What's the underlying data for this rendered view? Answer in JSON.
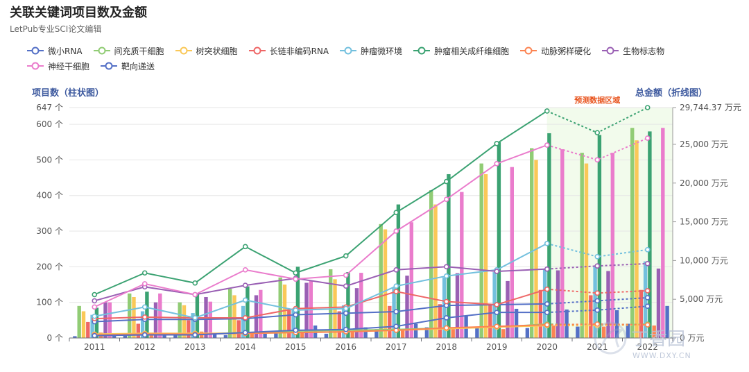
{
  "title": "关联关键词项目数及金额",
  "subtitle": "LetPub专业SCI论文编辑",
  "watermark": {
    "brand": "丁香园",
    "url": "WWW.DXY.CN"
  },
  "chart_data": {
    "type": "bar",
    "categories": [
      "2011",
      "2012",
      "2013",
      "2014",
      "2015",
      "2016",
      "2017",
      "2018",
      "2019",
      "2020",
      "2021",
      "2022"
    ],
    "left_axis": {
      "label": "项目数（柱状图）",
      "ticks": [
        "0 个",
        "100 个",
        "200 个",
        "300 个",
        "400 个",
        "500 个",
        "600 个",
        "647 个"
      ],
      "min": 0,
      "max": 647
    },
    "right_axis": {
      "label": "总金额（折线图）",
      "ticks": [
        "0 万元",
        "5,000 万元",
        "10,000 万元",
        "15,000 万元",
        "20,000 万元",
        "25,000 万元",
        "29,744.37 万元"
      ],
      "min": 0,
      "max": 29744.37
    },
    "forecast": {
      "label": "预测数据区域",
      "from": "2020",
      "to": "2022"
    },
    "series": [
      {
        "name": "微小RNA",
        "color": "#5470c6",
        "bars": [
          5,
          10,
          12,
          8,
          15,
          12,
          25,
          30,
          28,
          28,
          32,
          40
        ],
        "amount": [
          2100,
          2400,
          2400,
          2500,
          3000,
          3200,
          3400,
          4200,
          4300,
          4400,
          4800,
          5200
        ]
      },
      {
        "name": "间充质干细胞",
        "color": "#91cc75",
        "bars": [
          90,
          125,
          100,
          138,
          170,
          193,
          320,
          415,
          490,
          533,
          520,
          590
        ],
        "amount": [
          400,
          500,
          500,
          700,
          900,
          1000,
          1100,
          1300,
          1400,
          1800,
          1700,
          1800
        ]
      },
      {
        "name": "树突状细胞",
        "color": "#fac858",
        "bars": [
          75,
          115,
          92,
          120,
          150,
          165,
          305,
          375,
          460,
          500,
          490,
          555
        ],
        "amount": [
          500,
          600,
          600,
          600,
          700,
          800,
          1000,
          1200,
          1400,
          1600,
          1600,
          1700
        ]
      },
      {
        "name": "长链非编码RNA",
        "color": "#ee6666",
        "bars": [
          45,
          40,
          50,
          50,
          80,
          75,
          90,
          95,
          95,
          135,
          120,
          135
        ],
        "amount": [
          2500,
          2700,
          2600,
          2600,
          3800,
          4000,
          6000,
          4700,
          4300,
          6300,
          5800,
          6100
        ]
      },
      {
        "name": "肿瘤微环境",
        "color": "#73c0de",
        "bars": [
          65,
          75,
          70,
          90,
          80,
          92,
          140,
          170,
          185,
          195,
          200,
          215
        ],
        "amount": [
          2800,
          4000,
          2600,
          4900,
          3600,
          3800,
          6700,
          8000,
          8800,
          12200,
          10500,
          11400
        ]
      },
      {
        "name": "肿瘤相关成纤维细胞",
        "color": "#3ba272",
        "bars": [
          85,
          130,
          125,
          145,
          200,
          185,
          375,
          460,
          550,
          575,
          570,
          580
        ],
        "amount": [
          5600,
          8400,
          7100,
          11800,
          8400,
          10600,
          16200,
          20200,
          25100,
          29300,
          26500,
          29744.37
        ]
      },
      {
        "name": "动脉粥样硬化",
        "color": "#fc8452",
        "bars": [
          15,
          15,
          18,
          12,
          15,
          18,
          25,
          25,
          25,
          35,
          32,
          35
        ],
        "amount": [
          400,
          500,
          500,
          600,
          700,
          800,
          1000,
          1300,
          1500,
          1700,
          1800,
          1700
        ]
      },
      {
        "name": "生物标志物",
        "color": "#9a60b4",
        "bars": [
          100,
          100,
          115,
          120,
          155,
          140,
          175,
          182,
          160,
          190,
          188,
          195
        ],
        "amount": [
          4800,
          6600,
          5600,
          6800,
          7700,
          6700,
          8800,
          9200,
          8600,
          8900,
          9300,
          9600
        ]
      },
      {
        "name": "神经干细胞",
        "color": "#ea7ccc",
        "bars": [
          100,
          125,
          102,
          135,
          160,
          183,
          325,
          410,
          480,
          530,
          520,
          590
        ],
        "amount": [
          4000,
          7000,
          5600,
          8800,
          7600,
          8100,
          13800,
          17900,
          22500,
          24900,
          23000,
          25800
        ]
      },
      {
        "name": "靶向递送",
        "color": "#5470c6",
        "bars": [
          8,
          10,
          10,
          12,
          35,
          30,
          40,
          62,
          82,
          80,
          78,
          90
        ],
        "amount": [
          300,
          400,
          400,
          700,
          1000,
          1100,
          1500,
          2600,
          3300,
          3300,
          3600,
          4100
        ]
      }
    ]
  }
}
